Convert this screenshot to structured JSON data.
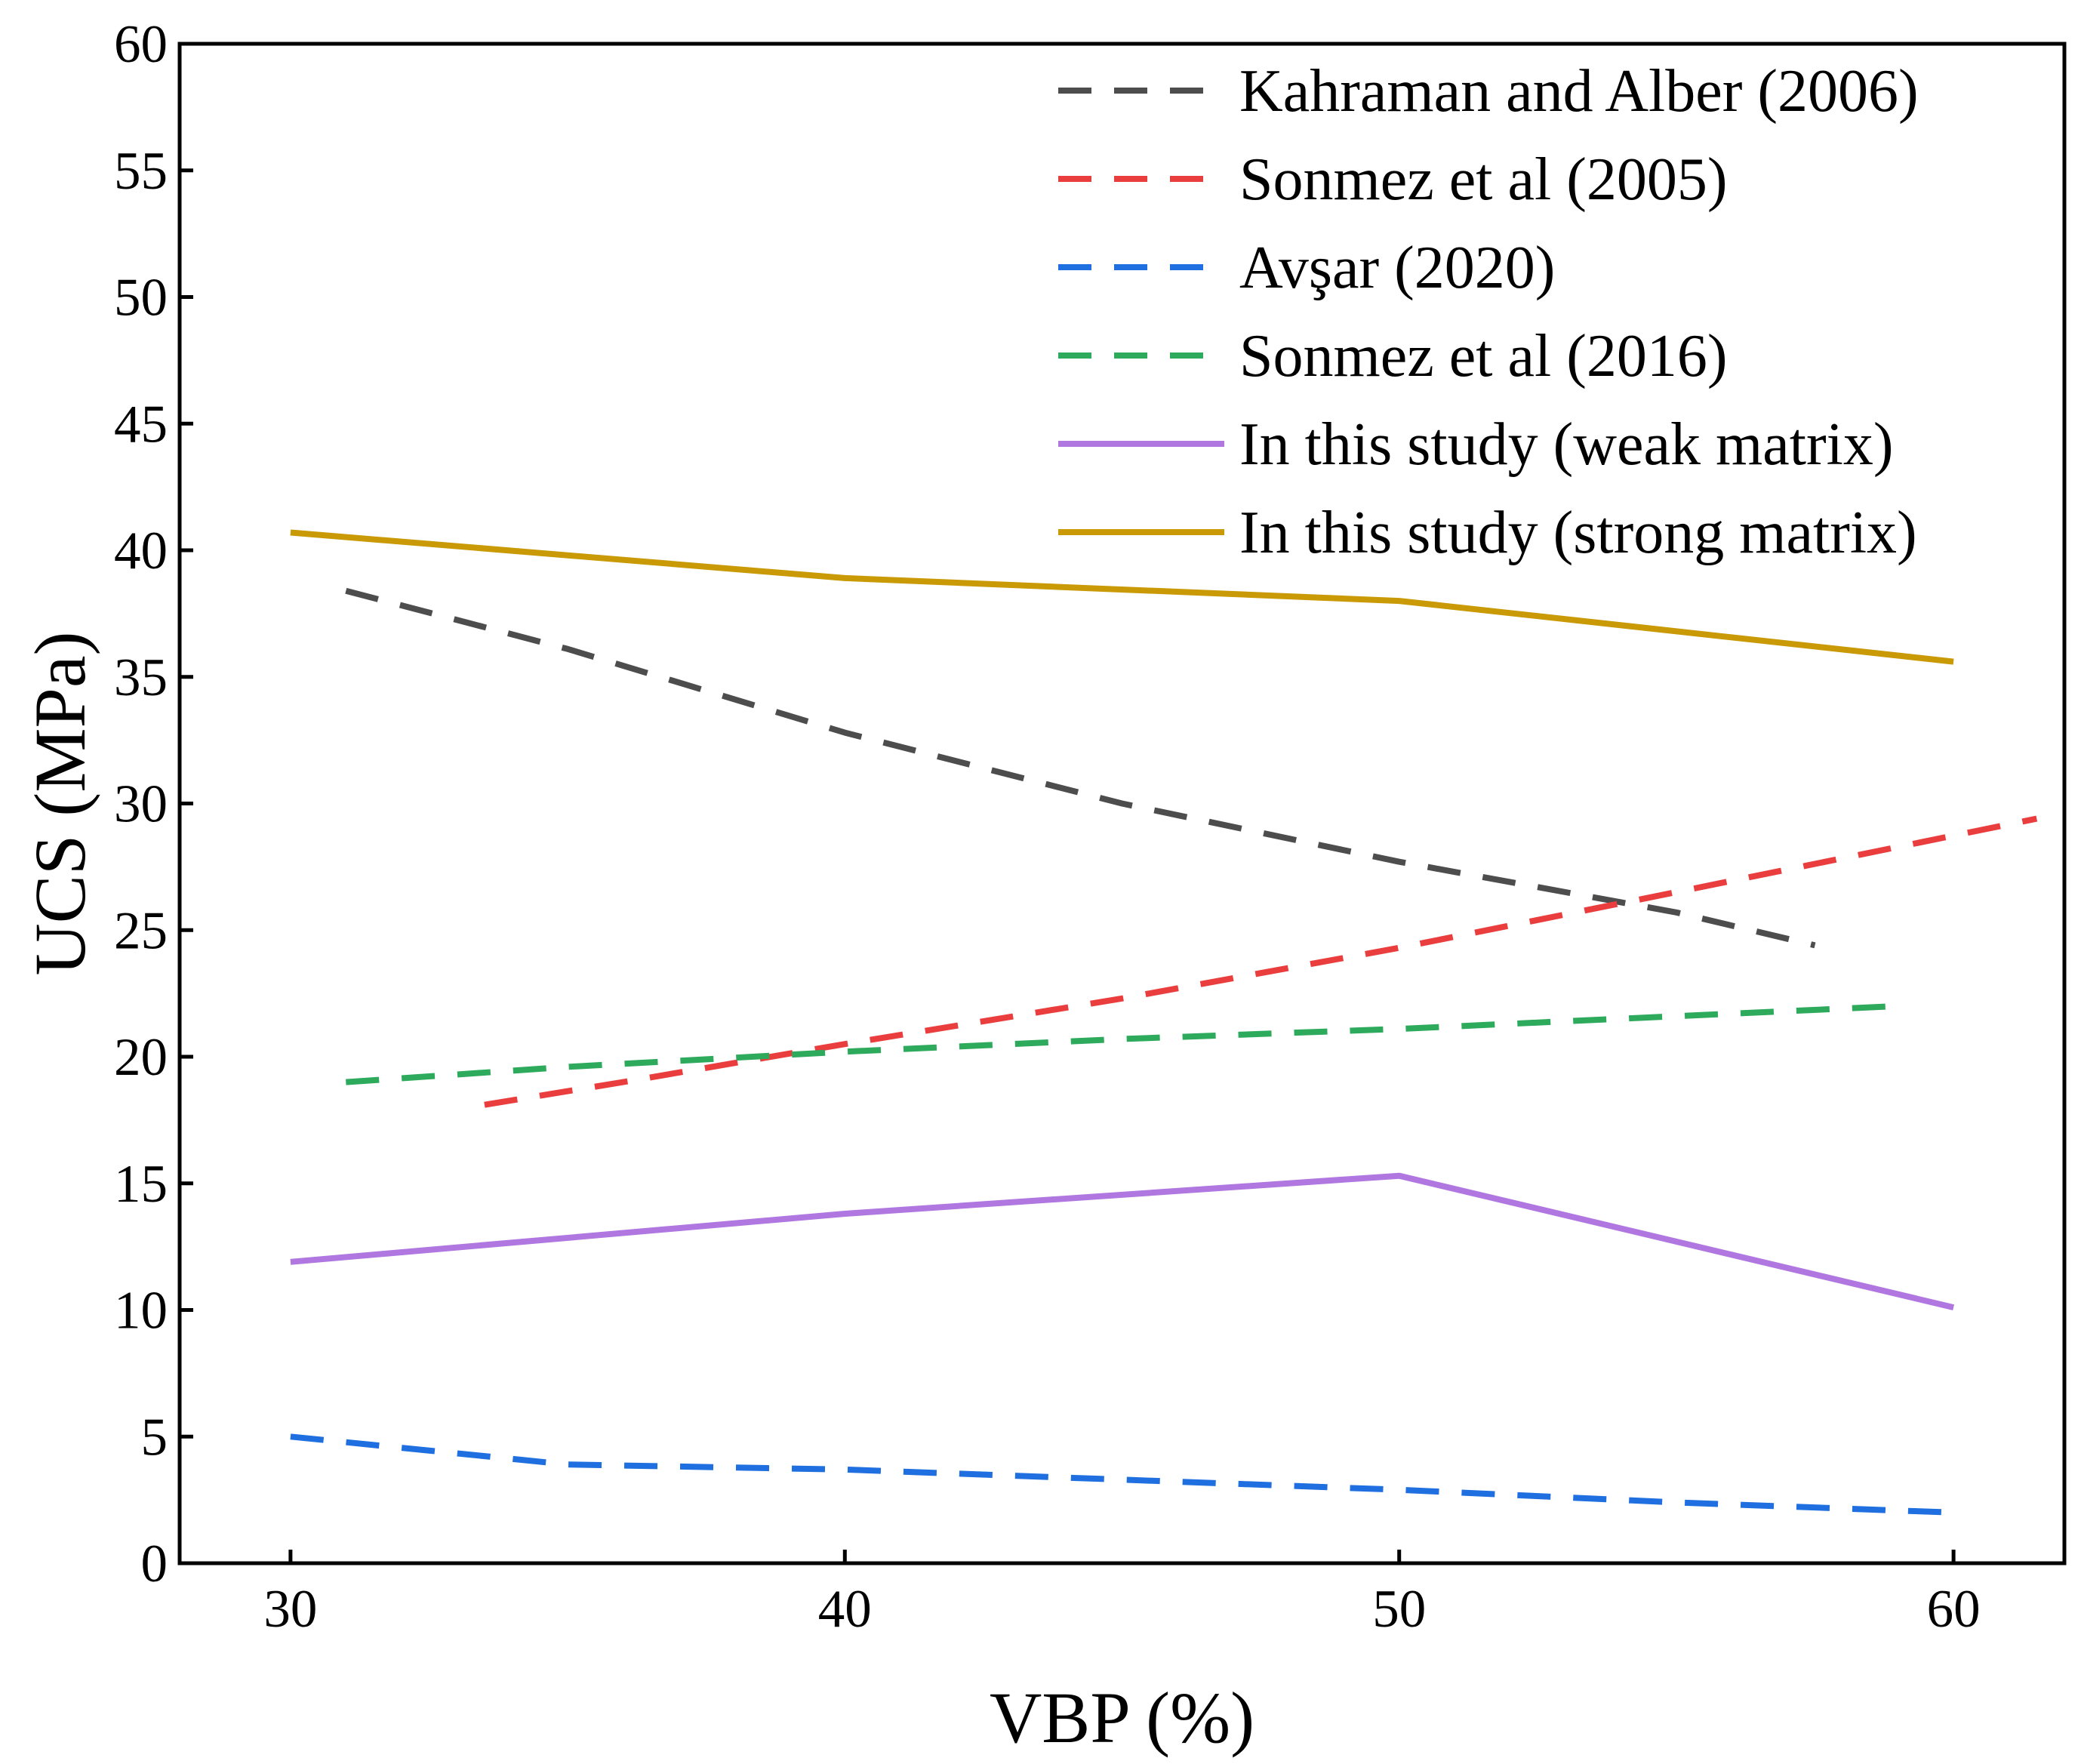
{
  "chart_data": {
    "type": "line",
    "title": "",
    "xlabel": "VBP (%)",
    "ylabel": "UCS (MPa)",
    "xlim": [
      28,
      62
    ],
    "ylim": [
      0,
      60
    ],
    "xticks": [
      30,
      40,
      50,
      60
    ],
    "yticks": [
      0,
      5,
      10,
      15,
      20,
      25,
      30,
      35,
      40,
      45,
      50,
      55,
      60
    ],
    "grid": false,
    "legend_position": "top-right",
    "series": [
      {
        "name": "Kahraman and Alber (2006)",
        "color": "#4d4d4d",
        "style": "dashed",
        "x": [
          31,
          35,
          40,
          45,
          50,
          55,
          57.5
        ],
        "y": [
          38.4,
          36.1,
          32.8,
          30.0,
          27.7,
          25.7,
          24.4
        ]
      },
      {
        "name": "Sonmez et al (2005)",
        "color": "#ea3d3d",
        "style": "dashed",
        "x": [
          33.5,
          36,
          40,
          45,
          50,
          55,
          61.5
        ],
        "y": [
          18.1,
          19.0,
          20.5,
          22.3,
          24.3,
          26.5,
          29.4
        ]
      },
      {
        "name": "Avşar (2020)",
        "color": "#1f6fe0",
        "style": "dashed",
        "x": [
          30,
          35,
          40,
          45,
          50,
          55,
          60
        ],
        "y": [
          5.0,
          3.9,
          3.7,
          3.3,
          2.9,
          2.4,
          2.0
        ]
      },
      {
        "name": "Sonmez et al (2016)",
        "color": "#2eaa5c",
        "style": "dashed",
        "x": [
          31,
          35,
          40,
          45,
          50,
          55,
          59
        ],
        "y": [
          19.0,
          19.6,
          20.2,
          20.7,
          21.1,
          21.6,
          22.0
        ]
      },
      {
        "name": "In this study (weak matrix)",
        "color": "#b077e0",
        "style": "solid",
        "x": [
          30,
          40,
          50,
          60
        ],
        "y": [
          11.9,
          13.8,
          15.3,
          10.1
        ]
      },
      {
        "name": "In this study (strong matrix)",
        "color": "#c99a06",
        "style": "solid",
        "x": [
          30,
          40,
          50,
          60
        ],
        "y": [
          40.7,
          38.9,
          38.0,
          35.6
        ]
      }
    ]
  }
}
